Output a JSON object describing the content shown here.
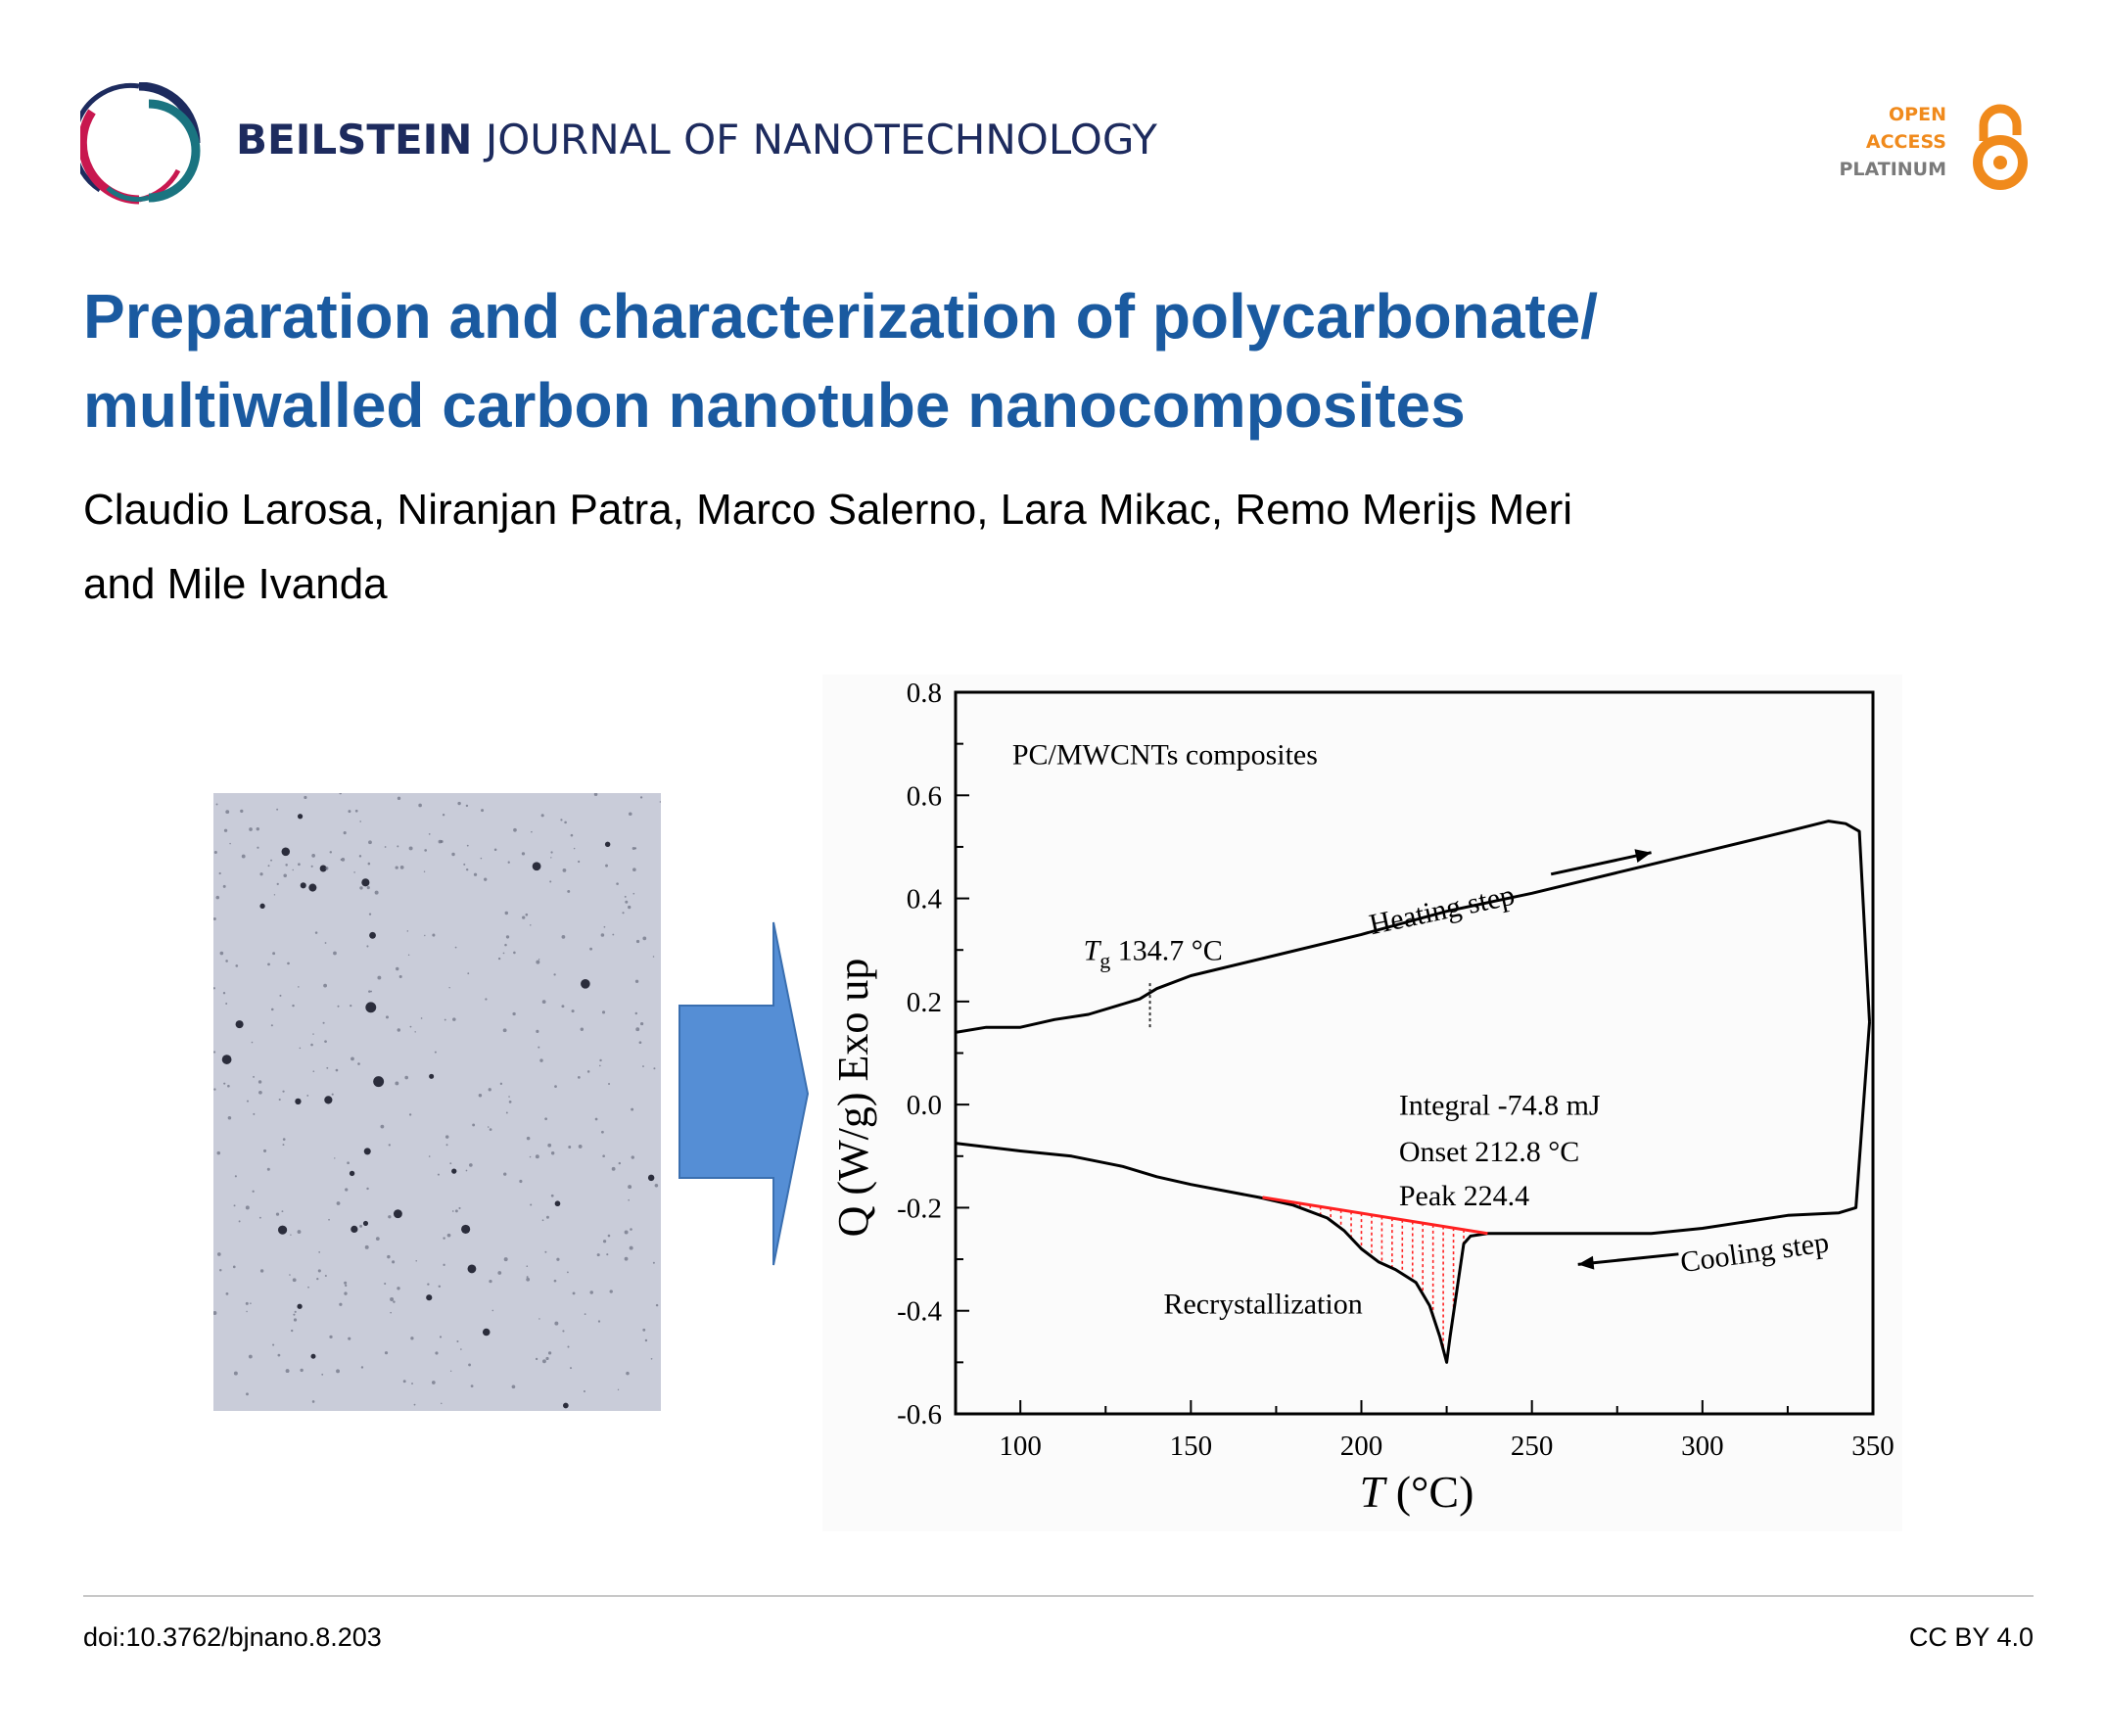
{
  "header": {
    "journal_bold": "BEILSTEIN",
    "journal_rest": "JOURNAL OF NANOTECHNOLOGY",
    "open_access": [
      "OPEN",
      "ACCESS",
      "PLATINUM"
    ],
    "logo_icon": "beilstein-rings-logo",
    "oa_icon": "open-lock-icon",
    "colors": {
      "navy": "#1d2b5e",
      "crimson": "#c8174f",
      "teal": "#1a7480",
      "orange": "#f08a1c",
      "gray": "#7a7a7a"
    }
  },
  "article": {
    "title_line1": "Preparation and characterization of polycarbonate/",
    "title_line2": "multiwalled carbon nanotube nanocomposites",
    "authors_line1": "Claudio Larosa, Niranjan Patra, Marco Salerno, Lara Mikac, Remo Merijs Meri",
    "authors_line2": "and Mile Ivanda",
    "title_color": "#1a5aa0"
  },
  "figure": {
    "arrow_color": "#558ed5",
    "micrograph_color": "#c9ccd9"
  },
  "chart_data": {
    "type": "line",
    "xlabel": "T (°C)",
    "xlabel_var": "T",
    "xlabel_unit": " (°C)",
    "ylabel": "Q (W/g) Exo up",
    "xlim": [
      81,
      350
    ],
    "ylim": [
      -0.6,
      0.8
    ],
    "xticks": [
      100,
      150,
      200,
      250,
      300,
      350
    ],
    "xtick_labels": [
      "100",
      "150",
      "200",
      "250",
      "300",
      "350"
    ],
    "yticks": [
      -0.6,
      -0.4,
      -0.2,
      0.0,
      0.2,
      0.4,
      0.6,
      0.8
    ],
    "ytick_labels": [
      "-0.6",
      "-0.4",
      "-0.2",
      "0.0",
      "0.2",
      "0.4",
      "0.6",
      "0.8"
    ],
    "grid": false,
    "series": [
      {
        "name": "Heating step",
        "color": "#000000",
        "x": [
          81,
          90,
          100,
          110,
          120,
          130,
          135,
          140,
          150,
          175,
          200,
          225,
          250,
          275,
          300,
          325,
          337,
          342,
          346,
          349
        ],
        "y": [
          0.14,
          0.15,
          0.15,
          0.165,
          0.175,
          0.195,
          0.205,
          0.225,
          0.25,
          0.29,
          0.33,
          0.375,
          0.41,
          0.45,
          0.49,
          0.53,
          0.55,
          0.545,
          0.53,
          0.16
        ]
      },
      {
        "name": "Cooling step",
        "color": "#000000",
        "x": [
          349,
          345,
          340,
          325,
          310,
          300,
          285,
          250,
          237,
          232,
          230,
          226,
          225,
          223,
          220,
          216,
          210,
          205,
          200,
          195,
          190,
          180,
          170,
          150,
          140,
          130,
          115,
          100,
          81
        ],
        "y": [
          0.16,
          -0.2,
          -0.21,
          -0.215,
          -0.23,
          -0.24,
          -0.25,
          -0.25,
          -0.25,
          -0.255,
          -0.27,
          -0.45,
          -0.5,
          -0.45,
          -0.39,
          -0.345,
          -0.32,
          -0.305,
          -0.28,
          -0.245,
          -0.22,
          -0.195,
          -0.18,
          -0.155,
          -0.14,
          -0.12,
          -0.1,
          -0.09,
          -0.075
        ]
      }
    ],
    "baseline": {
      "color": "#ff2020",
      "x": [
        171,
        237
      ],
      "y": [
        -0.18,
        -0.25
      ]
    },
    "tg_marker": {
      "x": 138,
      "y": [
        0.15,
        0.24
      ]
    },
    "annotations": {
      "sample": "PC/MWCNTs composites",
      "tg_symbol": "T",
      "tg_sub": "g",
      "tg_value": " 134.7 °C",
      "heating": "Heating step",
      "cooling": "Cooling step",
      "integral": "Integral -74.8 mJ",
      "onset": "Onset 212.8 °C",
      "peak": "Peak 224.4",
      "recryst": "Recrystallization"
    }
  },
  "footer": {
    "doi": "doi:10.3762/bjnano.8.203",
    "license": "CC BY 4.0"
  }
}
